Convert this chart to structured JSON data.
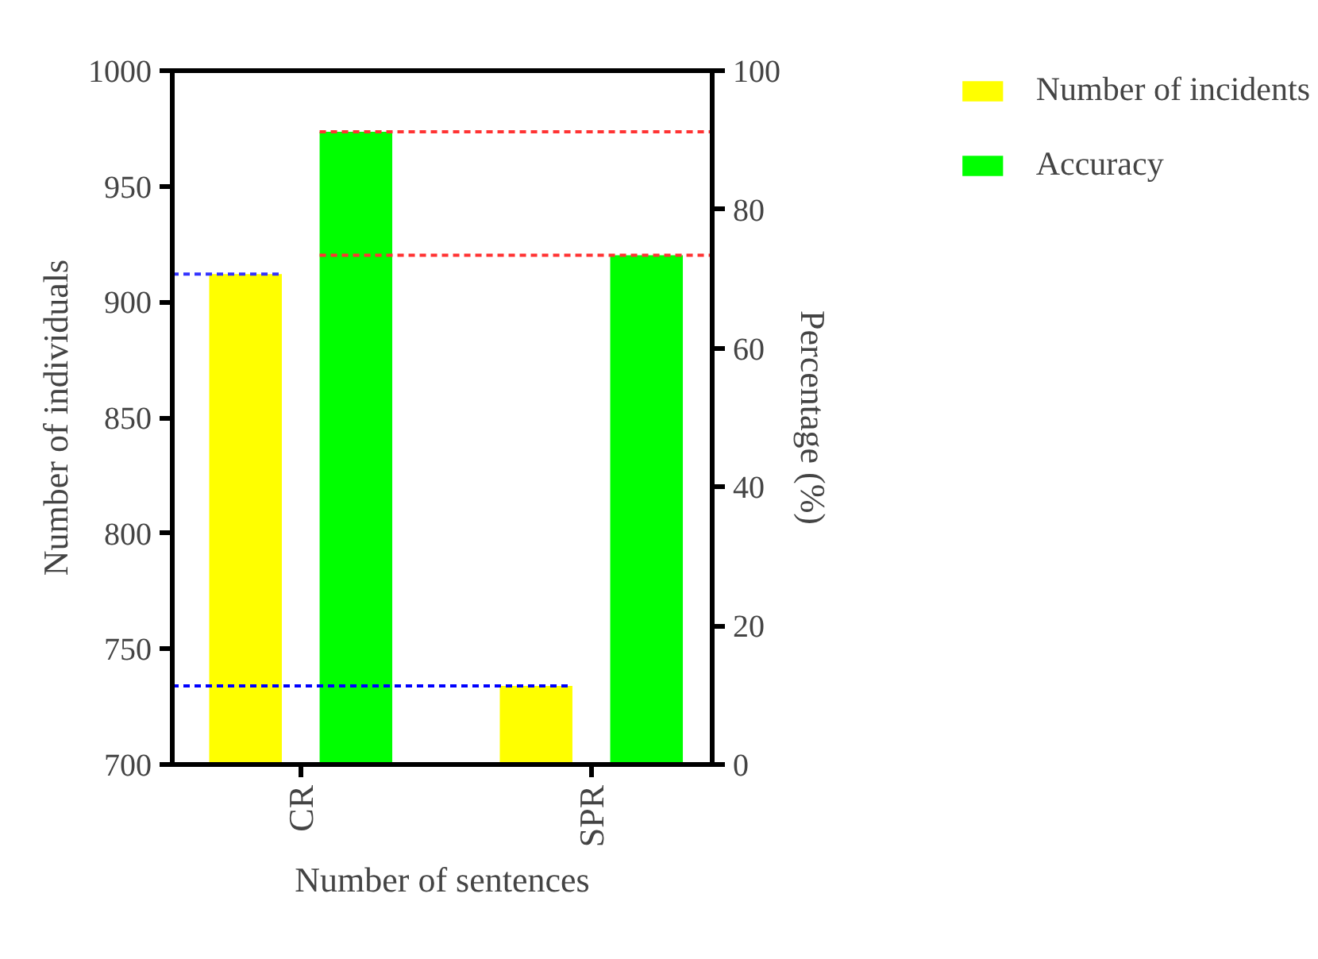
{
  "chart_data": {
    "type": "bar",
    "xlabel": "Number of sentences",
    "ylabel": "Number of individuals",
    "y2label": "Percentage (%)",
    "categories": [
      "CR",
      "SPR"
    ],
    "series": [
      {
        "name": "Number of incidents",
        "color": "#ffff00",
        "values": [
          912,
          734
        ]
      },
      {
        "name": "Accuracy",
        "color": "#00ff00",
        "values": [
          91.2,
          73.4
        ],
        "axis": "y2"
      }
    ],
    "ylim": [
      700,
      1000
    ],
    "yticks": [
      700,
      750,
      800,
      850,
      900,
      950,
      1000
    ],
    "y2lim": [
      0,
      100
    ],
    "y2ticks": [
      0,
      20,
      40,
      60,
      80,
      100
    ],
    "ref_lines": [
      {
        "axis": "y",
        "value": 912,
        "color": "#3333ff",
        "line_style": "dashed"
      },
      {
        "axis": "y",
        "value": 734,
        "color": "#0000ff",
        "line_style": "dashed"
      },
      {
        "axis": "y2",
        "value": 91.2,
        "color": "#ff3333",
        "line_style": "dashed"
      },
      {
        "axis": "y2",
        "value": 73.4,
        "color": "#ff3333",
        "line_style": "dashed"
      }
    ],
    "grid": false,
    "legend": "top right"
  }
}
